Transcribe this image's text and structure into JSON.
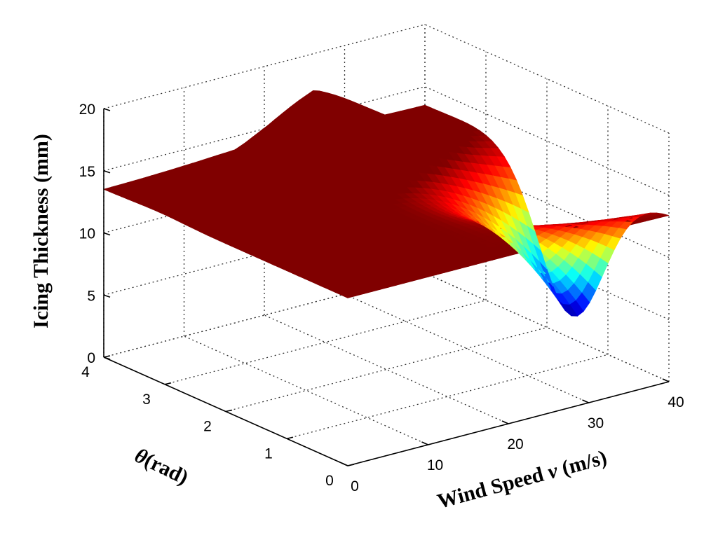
{
  "chart_data": {
    "type": "surface",
    "title": "",
    "xlabel": {
      "text_before": "Wind Speed ",
      "text_italic": "v",
      "text_after": " (m/s)"
    },
    "ylabel": {
      "text_italic": "θ",
      "text_after": "(rad)"
    },
    "zlabel": "Icing Thickness (mm)",
    "xlim": [
      0,
      40
    ],
    "ylim": [
      0,
      4
    ],
    "zlim": [
      0,
      20
    ],
    "x_ticks": [
      "0",
      "10",
      "20",
      "30",
      "40"
    ],
    "y_ticks": [
      "0",
      "1",
      "2",
      "3",
      "4"
    ],
    "z_ticks": [
      "0",
      "5",
      "10",
      "15",
      "20"
    ],
    "grid": true,
    "colormap": "jet",
    "surface_points": [
      {
        "wind_speed": 0,
        "theta": 0,
        "icing_thickness": 13.5
      },
      {
        "wind_speed": 0,
        "theta": 4,
        "icing_thickness": 13.5
      },
      {
        "wind_speed": 40,
        "theta": 4,
        "icing_thickness": 13.5
      },
      {
        "wind_speed": 20,
        "theta": 3.1,
        "icing_thickness": 20
      },
      {
        "wind_speed": 40,
        "theta": 1.6,
        "icing_thickness": 1.8
      },
      {
        "wind_speed": 40,
        "theta": 0,
        "icing_thickness": 13.5
      }
    ]
  }
}
